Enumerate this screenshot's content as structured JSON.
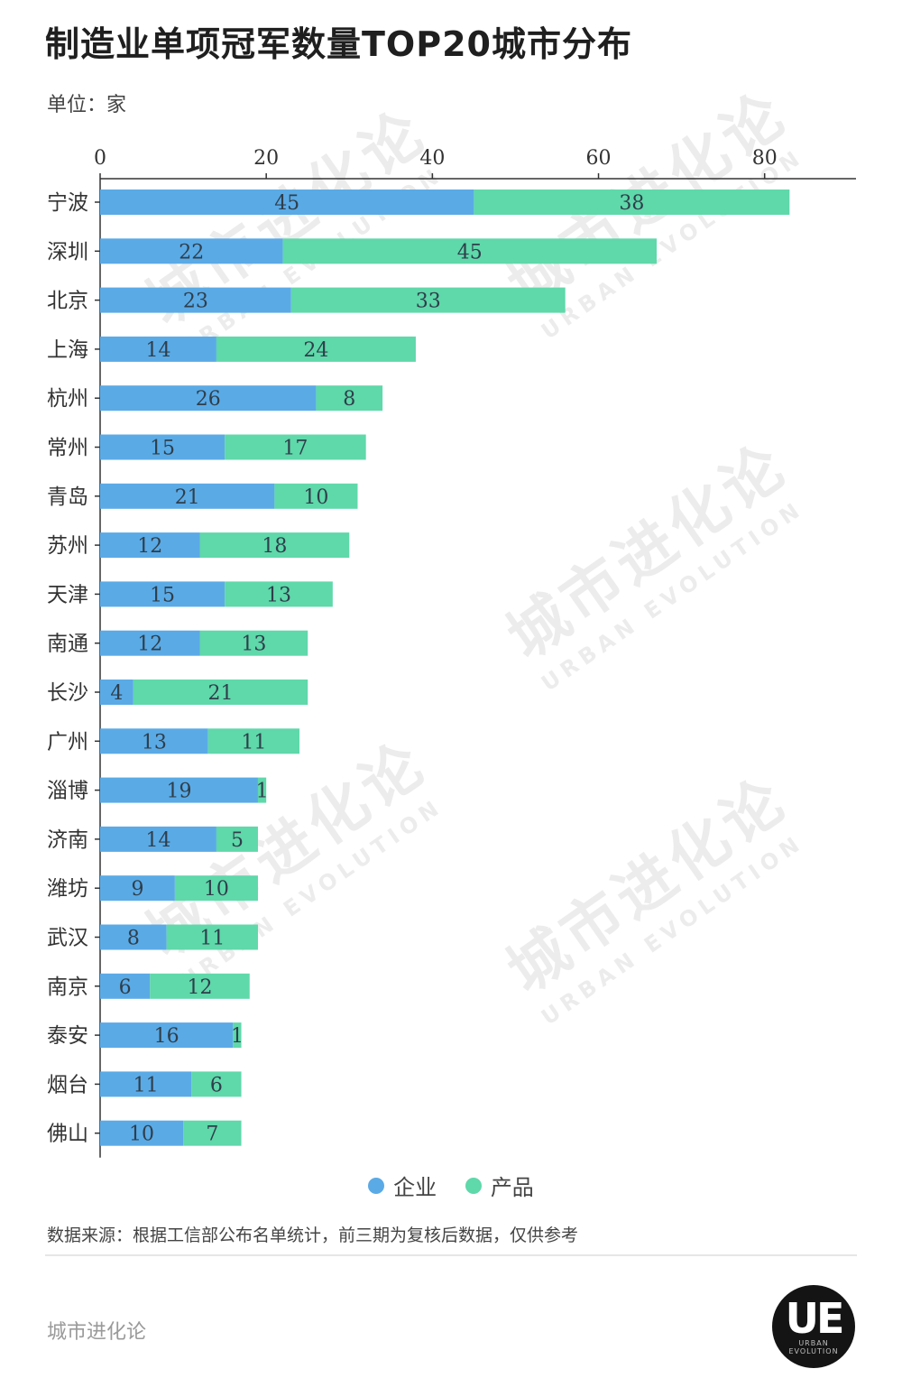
{
  "title": "制造业单项冠军数量TOP20城市分布",
  "unit_label": "单位：家",
  "colors": {
    "enterprise": "#5aaae6",
    "product": "#5fd8aa",
    "axis": "#333333",
    "label_text": "#333333"
  },
  "chart_data": {
    "type": "bar",
    "orientation": "horizontal",
    "stacked": true,
    "categories": [
      "宁波",
      "深圳",
      "北京",
      "上海",
      "杭州",
      "常州",
      "青岛",
      "苏州",
      "天津",
      "南通",
      "长沙",
      "广州",
      "淄博",
      "济南",
      "潍坊",
      "武汉",
      "南京",
      "泰安",
      "烟台",
      "佛山"
    ],
    "series": [
      {
        "name": "企业",
        "values": [
          45,
          22,
          23,
          14,
          26,
          15,
          21,
          12,
          15,
          12,
          4,
          13,
          19,
          14,
          9,
          8,
          6,
          16,
          11,
          10
        ]
      },
      {
        "name": "产品",
        "values": [
          38,
          45,
          33,
          24,
          8,
          17,
          10,
          18,
          13,
          13,
          21,
          11,
          1,
          5,
          10,
          11,
          12,
          1,
          6,
          7
        ]
      }
    ],
    "xlim": [
      0,
      91
    ],
    "xticks": [
      0,
      20,
      40,
      60,
      80
    ],
    "grid": false,
    "legend_position": "bottom"
  },
  "legend": [
    {
      "label": "企业",
      "color_key": "enterprise"
    },
    {
      "label": "产品",
      "color_key": "product"
    }
  ],
  "source": "数据来源：根据工信部公布名单统计，前三期为复核后数据，仅供参考",
  "brand": "城市进化论",
  "logo": {
    "mark": "UE",
    "sub1": "URBAN",
    "sub2": "EVOLUTION"
  },
  "watermark": {
    "main": "城市进化论",
    "sub": "URBAN EVOLUTION"
  }
}
